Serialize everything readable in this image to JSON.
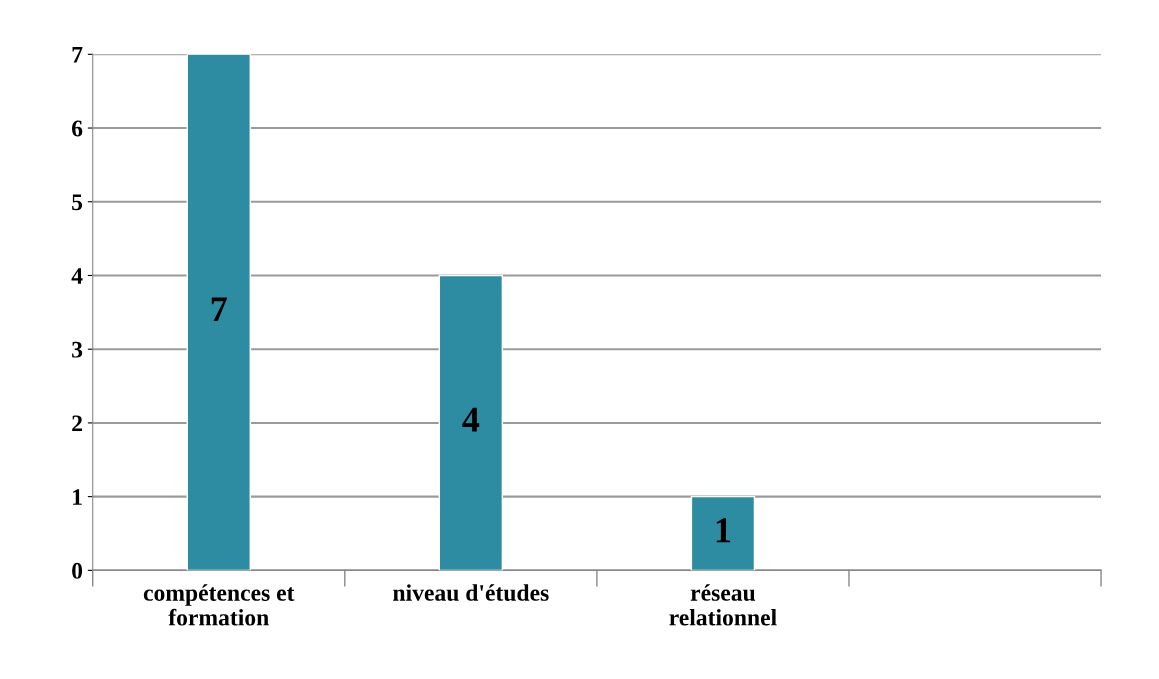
{
  "chart_data": {
    "type": "bar",
    "categories": [
      "compétences et\nformation",
      "niveau d'études",
      "réseau\nrelationnel",
      null
    ],
    "values": [
      7,
      4,
      1,
      null
    ],
    "color": "#2e8ca2",
    "ylim": [
      0,
      7
    ],
    "yticks": [
      0,
      1,
      2,
      3,
      4,
      5,
      6,
      7
    ],
    "grid": "y",
    "data_labels": true
  }
}
